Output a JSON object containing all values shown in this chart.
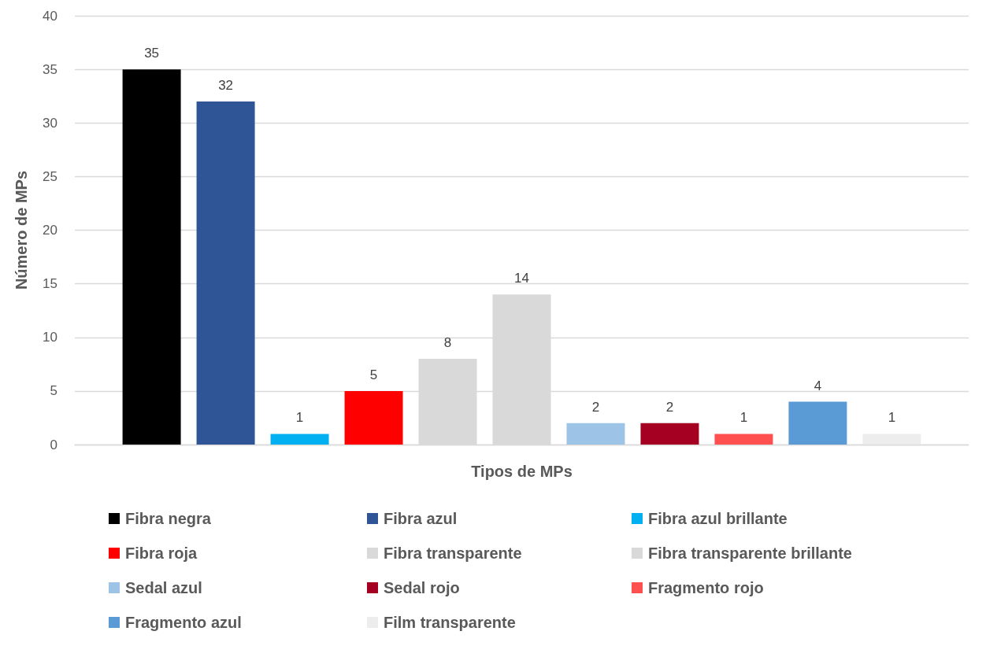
{
  "chart_data": {
    "type": "bar",
    "xlabel": "Tipos de MPs",
    "ylabel": "Número de MPs",
    "categories": [
      null
    ],
    "series": [
      {
        "name": "Fibra negra",
        "color": "#000000",
        "values": [
          35
        ]
      },
      {
        "name": "Fibra azul",
        "color": "#2f5597",
        "values": [
          32
        ]
      },
      {
        "name": "Fibra azul brillante",
        "color": "#00b0f0",
        "values": [
          1
        ]
      },
      {
        "name": "Fibra roja",
        "color": "#ff0000",
        "values": [
          5
        ]
      },
      {
        "name": "Fibra transparente",
        "color": "#d9d9d9",
        "values": [
          8
        ]
      },
      {
        "name": "Fibra transparente brillante",
        "color": "#d9d9d9",
        "values": [
          14
        ]
      },
      {
        "name": "Sedal azul",
        "color": "#9dc3e6",
        "values": [
          2
        ]
      },
      {
        "name": "Sedal rojo",
        "color": "#a50021",
        "values": [
          2
        ]
      },
      {
        "name": "Fragmento rojo",
        "color": "#ff5050",
        "values": [
          1
        ]
      },
      {
        "name": "Fragmento azul",
        "color": "#5b9bd5",
        "values": [
          4
        ]
      },
      {
        "name": "Film transparente",
        "color": "#ededed",
        "values": [
          1
        ]
      }
    ],
    "ylim": [
      0,
      40
    ],
    "yticks": [
      0,
      5,
      10,
      15,
      20,
      25,
      30,
      35,
      40
    ],
    "grid": "y",
    "legend": "bottom",
    "data_labels": true
  }
}
